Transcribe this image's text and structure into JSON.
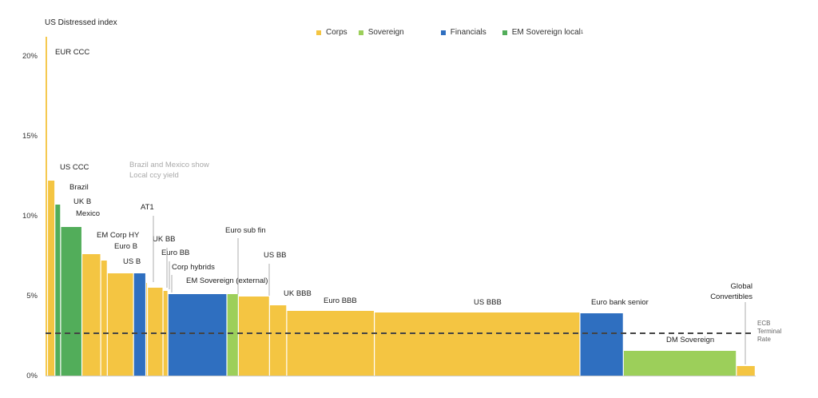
{
  "chart_data": {
    "type": "bar",
    "variable_width": true,
    "ylabel": "US Distressed index",
    "ylim": [
      0,
      20
    ],
    "yticks": [
      "0%",
      "5%",
      "10%",
      "15%",
      "20%"
    ],
    "ytick_values": [
      0,
      5,
      10,
      15,
      20
    ],
    "grid": false,
    "legend_position": "top-center",
    "legend": [
      {
        "name": "Corps",
        "color": "#f4c542"
      },
      {
        "name": "Sovereign",
        "color": "#9ccf5a"
      },
      {
        "name": "Financials",
        "color": "#2f6fc0"
      },
      {
        "name": "EM Sovereign local",
        "superscript": "1",
        "color": "#52ad5a"
      }
    ],
    "annotation": "Brazil and Mexico show Local ccy yield",
    "reference_line": {
      "label": "ECB Terminal Rate",
      "value": 2.65,
      "style": "dashed"
    },
    "bars": [
      {
        "label": "US Distressed index",
        "value": 21.2,
        "category": "Corps",
        "weight": 3
      },
      {
        "label": "EUR CCC",
        "value": 21.2,
        "category": "Corps",
        "weight": 0
      },
      {
        "label": "US CCC",
        "value": 12.2,
        "category": "Corps",
        "weight": 9
      },
      {
        "label": "Brazil",
        "value": 10.7,
        "category": "EM Sovereign local",
        "weight": 7
      },
      {
        "label": "Mexico",
        "value": 9.3,
        "category": "EM Sovereign local",
        "weight": 26
      },
      {
        "label": "EM Corp HY",
        "value": 7.6,
        "category": "Corps",
        "weight": 23
      },
      {
        "label": "Euro B",
        "value": 7.2,
        "category": "Corps",
        "weight": 8
      },
      {
        "label": "US B",
        "value": 6.4,
        "category": "Corps",
        "weight": 32
      },
      {
        "label": "AT1",
        "value": 6.4,
        "category": "Financials",
        "weight": 15
      },
      {
        "label": "UK B",
        "value": 5.8,
        "category": "Corps",
        "weight": 2
      },
      {
        "label": "UK BB",
        "value": 5.5,
        "category": "Corps",
        "weight": 19
      },
      {
        "label": "Euro BB",
        "value": 5.3,
        "category": "Corps",
        "weight": 6
      },
      {
        "label": "EM Sovereign (external)",
        "value": 5.1,
        "category": "Financials",
        "weight": 72
      },
      {
        "label": "Euro sub fin",
        "value": 5.1,
        "category": "Sovereign",
        "weight": 14
      },
      {
        "label": "Corp hybrids",
        "value": 4.95,
        "category": "Corps",
        "weight": 38
      },
      {
        "label": "US BB",
        "value": 4.4,
        "category": "Corps",
        "weight": 21
      },
      {
        "label": "UK BBB",
        "value": 4.05,
        "category": "Corps",
        "weight": 107
      },
      {
        "label": "Euro BBB",
        "value": 3.95,
        "category": "Corps",
        "weight": 251
      },
      {
        "label": "US BBB",
        "value": 3.9,
        "category": "Financials",
        "weight": 53
      },
      {
        "label": "Euro bank senior",
        "value": 1.55,
        "category": "Sovereign",
        "weight": 138
      },
      {
        "label": "DM Sovereign",
        "value": 0.6,
        "category": "Corps",
        "weight": 23
      },
      {
        "label": "Global Convertibles",
        "value": 0.6,
        "category": "Corps",
        "weight": 0
      }
    ],
    "bar_labels": [
      {
        "text": "EUR CCC"
      },
      {
        "text": "US CCC"
      },
      {
        "text": "Brazil"
      },
      {
        "text": "UK B"
      },
      {
        "text": "Mexico"
      },
      {
        "text": "EM Corp HY"
      },
      {
        "text": "Euro B"
      },
      {
        "text": "US B"
      },
      {
        "text": "AT1"
      },
      {
        "text": "UK BB"
      },
      {
        "text": "Euro BB"
      },
      {
        "text": "Corp hybrids"
      },
      {
        "text": "EM Sovereign (external)"
      },
      {
        "text": "Euro sub fin"
      },
      {
        "text": "US BB"
      },
      {
        "text": "UK BBB"
      },
      {
        "text": "Euro BBB"
      },
      {
        "text": "US BBB"
      },
      {
        "text": "Euro bank senior"
      },
      {
        "text": "DM Sovereign"
      },
      {
        "text": "Global"
      },
      {
        "text": "Convertibles"
      }
    ]
  },
  "header": {
    "ylabel": "US Distressed index"
  },
  "note": {
    "line1": "Brazil and Mexico show",
    "line2": "Local ccy yield"
  },
  "ecb": {
    "line1": "ECB",
    "line2": "Terminal",
    "line3": "Rate"
  }
}
